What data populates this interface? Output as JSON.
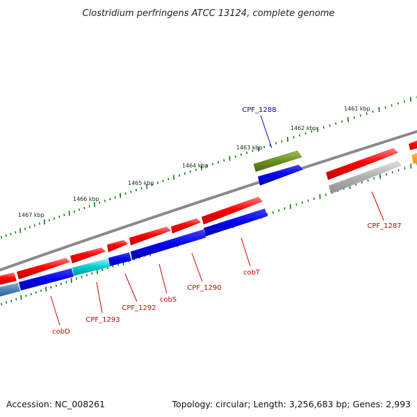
{
  "title": "Clostridium perfringens ATCC 13124, complete genome",
  "footer": {
    "accession": "Accession: NC_008261",
    "summary": "Topology: circular; Length: 3,256,683 bp; Genes: 2,993"
  },
  "tick_labels": [
    "1461 kbp",
    "1462 kbp",
    "1463 kbp",
    "1464 kbp",
    "1465 kbp",
    "1466 kbp",
    "1467 kbp"
  ],
  "genes": [
    {
      "label": "CPF_1287",
      "color": "#cc0000"
    },
    {
      "label": "CPF_1288",
      "color": "#0000cc"
    },
    {
      "label": "cobT",
      "color": "#cc0000"
    },
    {
      "label": "CPF_1290",
      "color": "#cc0000"
    },
    {
      "label": "cobS",
      "color": "#cc0000"
    },
    {
      "label": "CPF_1292",
      "color": "#cc0000"
    },
    {
      "label": "CPF_1293",
      "color": "#cc0000"
    },
    {
      "label": "cobD",
      "color": "#cc0000"
    }
  ],
  "colors": {
    "backbone": "#808080",
    "forward_cds": "#ff0000",
    "reverse_cds": "#0000ee",
    "tick": "#007700"
  }
}
